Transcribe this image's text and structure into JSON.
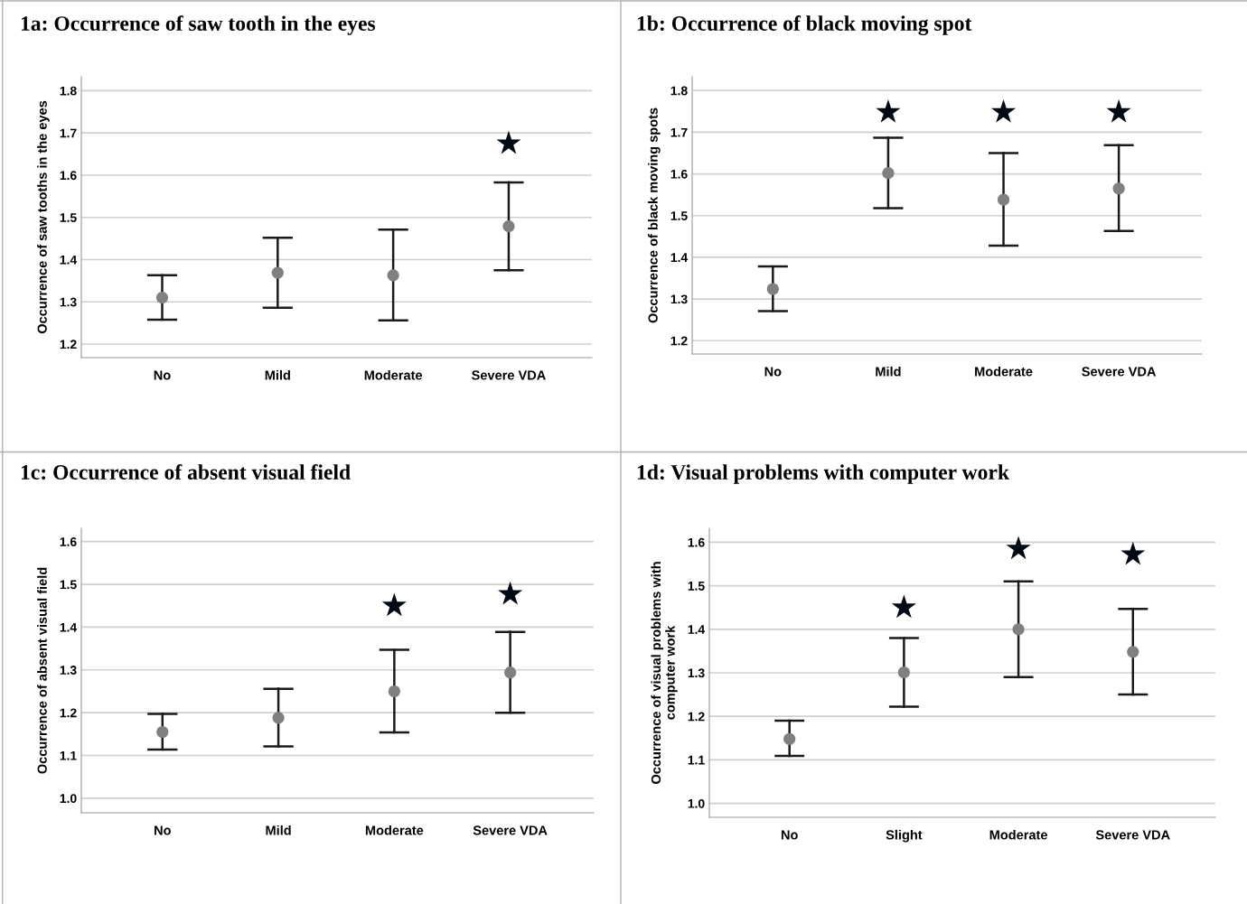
{
  "chart_data": [
    {
      "type": "scatter",
      "title": "1a: Occurrence of saw tooth in the eyes",
      "ylabel": "Occurrence of saw tooths in the eyes",
      "categories": [
        "No",
        "Mild",
        "Moderate",
        "Severe VDA"
      ],
      "series": [
        {
          "color": "#808080",
          "values": [
            1.31,
            1.369,
            1.363,
            1.479
          ],
          "errors": [
            [
              1.258,
              1.363
            ],
            [
              1.286,
              1.452
            ],
            [
              1.256,
              1.471
            ],
            [
              1.375,
              1.583
            ]
          ]
        },
        {
          "color": "#000814",
          "marker": "star",
          "values": [
            null,
            null,
            null,
            1.675
          ]
        }
      ],
      "ylim": [
        1.168,
        1.833
      ],
      "yticks": [
        1.2,
        1.3,
        1.4,
        1.5,
        1.6,
        1.7,
        1.8
      ],
      "grid": "y",
      "marker": "circle"
    },
    {
      "type": "scatter",
      "title": "1b: Occurrence of black moving spot",
      "ylabel": "Occurrence of black moving spots",
      "categories": [
        "No",
        "Mild",
        "Moderate",
        "Severe VDA"
      ],
      "series": [
        {
          "color": "#808080",
          "values": [
            1.324,
            1.602,
            1.538,
            1.565
          ],
          "errors": [
            [
              1.271,
              1.378
            ],
            [
              1.518,
              1.687
            ],
            [
              1.428,
              1.65
            ],
            [
              1.463,
              1.669
            ]
          ]
        },
        {
          "color": "#000814",
          "marker": "star",
          "values": [
            null,
            1.748,
            1.748,
            1.748
          ]
        }
      ],
      "ylim": [
        1.168,
        1.833
      ],
      "yticks": [
        1.2,
        1.3,
        1.4,
        1.5,
        1.6,
        1.7,
        1.8
      ],
      "grid": "y",
      "marker": "circle"
    },
    {
      "type": "scatter",
      "title": "1c: Occurrence of absent visual field",
      "ylabel": "Occurrence of absent visual field",
      "categories": [
        "No",
        "Mild",
        "Moderate",
        "Severe VDA"
      ],
      "series": [
        {
          "color": "#808080",
          "values": [
            1.155,
            1.188,
            1.25,
            1.294
          ],
          "errors": [
            [
              1.114,
              1.197
            ],
            [
              1.121,
              1.256
            ],
            [
              1.154,
              1.347
            ],
            [
              1.2,
              1.389
            ]
          ]
        },
        {
          "color": "#000814",
          "marker": "star",
          "values": [
            null,
            null,
            1.45,
            1.477
          ]
        }
      ],
      "ylim": [
        0.966,
        1.631
      ],
      "yticks": [
        {
          "value": 1.0,
          "label": "1.0"
        },
        1.1,
        1.2,
        1.3,
        1.4,
        1.5,
        1.6
      ],
      "grid": "y",
      "marker": "circle"
    },
    {
      "type": "scatter",
      "title": "1d: Visual problems with computer work",
      "ylabel": "Occurrence of visual problems with\ncomputer work",
      "categories": [
        "No",
        "Slight",
        "Moderate",
        "Severe VDA"
      ],
      "series": [
        {
          "color": "#808080",
          "values": [
            1.148,
            1.301,
            1.4,
            1.348
          ],
          "errors": [
            [
              1.109,
              1.19
            ],
            [
              1.222,
              1.38
            ],
            [
              1.29,
              1.51
            ],
            [
              1.25,
              1.447
            ]
          ]
        },
        {
          "color": "#000814",
          "marker": "star",
          "values": [
            null,
            1.45,
            1.585,
            1.572
          ]
        }
      ],
      "ylim": [
        0.968,
        1.632
      ],
      "yticks": [
        {
          "value": 1.0,
          "label": "1.0"
        },
        1.1,
        1.2,
        1.3,
        1.4,
        1.5,
        1.6
      ],
      "grid": "y",
      "marker": "circle"
    }
  ]
}
